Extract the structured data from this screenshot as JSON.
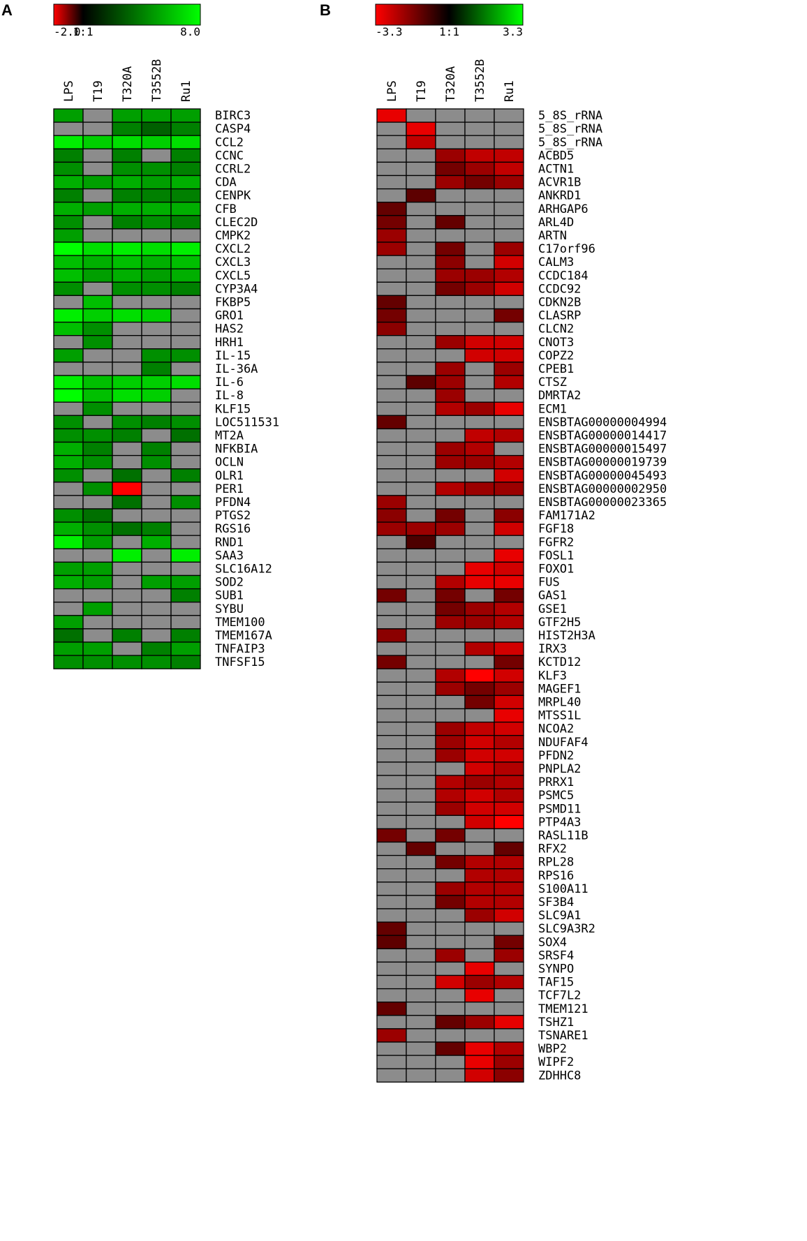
{
  "chart_data": [
    {
      "type": "heatmap",
      "panel": "A",
      "color_scale": {
        "min_label": "-2.0",
        "mid_label": "1:1",
        "max_label": "8.0",
        "min": -2.0,
        "max": 8.0,
        "neg_color": "#ff0000",
        "mid_color": "#000000",
        "pos_color": "#00ff00",
        "na_color": "#8c8c8c"
      },
      "columns": [
        "LPS",
        "T19",
        "T320A",
        "T3552B",
        "Ru1"
      ],
      "rows": [
        "BIRC3",
        "CASP4",
        "CCL2",
        "CCNC",
        "CCRL2",
        "CDA",
        "CENPK",
        "CFB",
        "CLEC2D",
        "CMPK2",
        "CXCL2",
        "CXCL3",
        "CXCL5",
        "CYP3A4",
        "FKBP5",
        "GRO1",
        "HAS2",
        "HRH1",
        "IL-15",
        "IL-36A",
        "IL-6",
        "IL-8",
        "KLF15",
        "LOC511531",
        "MT2A",
        "NFKBIA",
        "OCLN",
        "OLR1",
        "PER1",
        "PFDN4",
        "PTGS2",
        "RGS16",
        "RND1",
        "SAA3",
        "SLC16A12",
        "SOD2",
        "SUB1",
        "SYBU",
        "TMEM100",
        "TMEM167A",
        "TNFAIP3",
        "TNFSF15"
      ],
      "values": [
        [
          5,
          null,
          5,
          5,
          5
        ],
        [
          null,
          null,
          4,
          3,
          4
        ],
        [
          7.5,
          6.5,
          7,
          6.5,
          7
        ],
        [
          4,
          null,
          4,
          null,
          4
        ],
        [
          4.5,
          null,
          4.5,
          4.5,
          4
        ],
        [
          5.5,
          5,
          5.5,
          5,
          5.5
        ],
        [
          4,
          null,
          4,
          4,
          4
        ],
        [
          5.5,
          5,
          5.5,
          5.5,
          5.5
        ],
        [
          4.5,
          null,
          4,
          4.5,
          4
        ],
        [
          5,
          null,
          null,
          null,
          null
        ],
        [
          8,
          7,
          7.5,
          7,
          7.5
        ],
        [
          6,
          5.5,
          6,
          5.5,
          6
        ],
        [
          6,
          5,
          5.5,
          5,
          5.5
        ],
        [
          4.5,
          null,
          4.5,
          4.5,
          4
        ],
        [
          null,
          6,
          null,
          null,
          null
        ],
        [
          7.5,
          6.5,
          7,
          6.5,
          null
        ],
        [
          6,
          4.5,
          null,
          null,
          null
        ],
        [
          null,
          4.5,
          null,
          null,
          null
        ],
        [
          5,
          null,
          null,
          4.5,
          4.5
        ],
        [
          null,
          null,
          null,
          4,
          null
        ],
        [
          7.5,
          6,
          6.5,
          6.5,
          7
        ],
        [
          8,
          6,
          7,
          6.5,
          null
        ],
        [
          null,
          4.5,
          null,
          null,
          null
        ],
        [
          4.5,
          null,
          4.5,
          4,
          4.5
        ],
        [
          4.5,
          4.5,
          4,
          null,
          3.5
        ],
        [
          5.5,
          4,
          null,
          4,
          null
        ],
        [
          5.5,
          4.5,
          null,
          4.5,
          null
        ],
        [
          4.5,
          null,
          3.5,
          null,
          4
        ],
        [
          null,
          4.5,
          -2,
          null,
          null
        ],
        [
          null,
          null,
          3.5,
          null,
          4.5
        ],
        [
          4.5,
          3.5,
          null,
          null,
          null
        ],
        [
          5.5,
          4.5,
          3.5,
          4,
          null
        ],
        [
          7.5,
          5,
          null,
          5.5,
          null
        ],
        [
          null,
          null,
          7.5,
          null,
          7.5
        ],
        [
          5,
          5,
          null,
          null,
          null
        ],
        [
          5.5,
          5,
          null,
          5,
          5
        ],
        [
          null,
          null,
          null,
          null,
          4
        ],
        [
          null,
          5,
          null,
          null,
          null
        ],
        [
          5,
          null,
          null,
          null,
          null
        ],
        [
          3.5,
          null,
          4,
          null,
          4
        ],
        [
          5,
          5,
          null,
          4,
          5
        ],
        [
          4.5,
          4.5,
          4.5,
          4.5,
          4
        ]
      ]
    },
    {
      "type": "heatmap",
      "panel": "B",
      "color_scale": {
        "min_label": "-3.3",
        "mid_label": "1:1",
        "max_label": "3.3",
        "min": -3.3,
        "max": 3.3,
        "neg_color": "#ff0000",
        "mid_color": "#000000",
        "pos_color": "#00ff00",
        "na_color": "#8c8c8c"
      },
      "columns": [
        "LPS",
        "T19",
        "T320A",
        "T3552B",
        "Ru1"
      ],
      "rows": [
        "5_8S_rRNA",
        "5_8S_rRNA",
        "5_8S_rRNA",
        "ACBD5",
        "ACTN1",
        "ACVR1B",
        "ANKRD1",
        "ARHGAP6",
        "ARL4D",
        "ARTN",
        "C17orf96",
        "CALM3",
        "CCDC184",
        "CCDC92",
        "CDKN2B",
        "CLASRP",
        "CLCN2",
        "CNOT3",
        "COPZ2",
        "CPEB1",
        "CTSZ",
        "DMRTA2",
        "ECM1",
        "ENSBTAG00000004994",
        "ENSBTAG00000014417",
        "ENSBTAG00000015497",
        "ENSBTAG00000019739",
        "ENSBTAG00000045493",
        "ENSBTAG00000002950",
        "ENSBTAG00000023365",
        "FAM171A2",
        "FGF18",
        "FGFR2",
        "FOSL1",
        "FOXO1",
        "FUS",
        "GAS1",
        "GSE1",
        "GTF2H5",
        "HIST2H3A",
        "IRX3",
        "KCTD12",
        "KLF3",
        "MAGEF1",
        "MRPL40",
        "MTSS1L",
        "NCOA2",
        "NDUFAF4",
        "PFDN2",
        "PNPLA2",
        "PRRX1",
        "PSMC5",
        "PSMD11",
        "PTP4A3",
        "RASL11B",
        "RFX2",
        "RPL28",
        "RPS16",
        "S100A11",
        "SF3B4",
        "SLC9A1",
        "SLC9A3R2",
        "SOX4",
        "SRSF4",
        "SYNPO",
        "TAF15",
        "TCF7L2",
        "TMEM121",
        "TSHZ1",
        "TSNARE1",
        "WBP2",
        "WIPF2",
        "ZDHHC8"
      ],
      "values": [
        [
          -3.0,
          null,
          null,
          null,
          null
        ],
        [
          null,
          -3.0,
          null,
          null,
          null
        ],
        [
          null,
          -2.5,
          null,
          null,
          null
        ],
        [
          null,
          null,
          -2.0,
          -2.5,
          -2.5
        ],
        [
          null,
          null,
          -1.5,
          -2.0,
          -2.5
        ],
        [
          null,
          null,
          -2.0,
          -1.5,
          -2.0
        ],
        [
          null,
          -1.2,
          null,
          null,
          null
        ],
        [
          -1.3,
          null,
          null,
          null,
          null
        ],
        [
          -1.5,
          null,
          -1.3,
          null,
          null
        ],
        [
          -2.0,
          null,
          null,
          null,
          null
        ],
        [
          -2.0,
          null,
          -1.5,
          null,
          -2.0
        ],
        [
          null,
          null,
          -1.8,
          null,
          -2.7
        ],
        [
          null,
          null,
          -2.0,
          -2.0,
          -2.3
        ],
        [
          null,
          null,
          -1.5,
          -2.0,
          -2.7
        ],
        [
          -1.3,
          null,
          null,
          null,
          null
        ],
        [
          -1.5,
          null,
          null,
          null,
          -1.5
        ],
        [
          -1.8,
          null,
          null,
          null,
          null
        ],
        [
          null,
          null,
          -2.0,
          -2.7,
          -2.7
        ],
        [
          null,
          null,
          null,
          -2.7,
          -2.7
        ],
        [
          null,
          null,
          -2.0,
          null,
          -2.0
        ],
        [
          null,
          -1.2,
          -2.0,
          null,
          -2.3
        ],
        [
          null,
          null,
          -2.0,
          null,
          null
        ],
        [
          null,
          null,
          -2.3,
          -2.0,
          -3.0
        ],
        [
          -1.3,
          null,
          null,
          null,
          null
        ],
        [
          null,
          null,
          null,
          -2.5,
          -2.3
        ],
        [
          null,
          null,
          -2.0,
          -2.3,
          null
        ],
        [
          null,
          null,
          -2.0,
          -2.0,
          -2.3
        ],
        [
          null,
          null,
          null,
          null,
          -2.7
        ],
        [
          null,
          null,
          -2.3,
          -2.0,
          -2.0
        ],
        [
          -2.0,
          null,
          null,
          null,
          null
        ],
        [
          -1.8,
          null,
          -1.5,
          null,
          -1.8
        ],
        [
          -2.0,
          -2.0,
          -2.0,
          null,
          -2.7
        ],
        [
          null,
          -1.0,
          null,
          null,
          null
        ],
        [
          null,
          null,
          null,
          null,
          -3.0
        ],
        [
          null,
          null,
          null,
          -3.0,
          -2.7
        ],
        [
          null,
          null,
          -2.3,
          -3.0,
          -3.0
        ],
        [
          -1.5,
          null,
          -1.5,
          null,
          -1.5
        ],
        [
          null,
          null,
          -1.5,
          -2.0,
          -2.3
        ],
        [
          null,
          null,
          -2.0,
          -2.0,
          -2.3
        ],
        [
          -1.8,
          null,
          null,
          null,
          null
        ],
        [
          null,
          null,
          null,
          -2.3,
          -2.7
        ],
        [
          -1.5,
          null,
          null,
          null,
          -1.5
        ],
        [
          null,
          null,
          -2.3,
          -3.3,
          -2.7
        ],
        [
          null,
          null,
          -2.0,
          -1.5,
          -2.0
        ],
        [
          null,
          null,
          null,
          -1.5,
          -2.7
        ],
        [
          null,
          null,
          null,
          null,
          -3.0
        ],
        [
          null,
          null,
          -2.0,
          -2.5,
          -2.7
        ],
        [
          null,
          null,
          -2.0,
          -2.7,
          -2.3
        ],
        [
          null,
          null,
          -2.0,
          -2.7,
          -2.7
        ],
        [
          null,
          null,
          null,
          -2.7,
          -2.3
        ],
        [
          null,
          null,
          -2.3,
          -2.0,
          -2.3
        ],
        [
          null,
          null,
          -2.3,
          -2.7,
          -2.3
        ],
        [
          null,
          null,
          -2.0,
          -2.7,
          -2.7
        ],
        [
          null,
          null,
          null,
          -2.7,
          -3.3
        ],
        [
          -1.5,
          null,
          -1.5,
          null,
          null
        ],
        [
          null,
          -1.3,
          null,
          null,
          -1.3
        ],
        [
          null,
          null,
          -1.5,
          -2.3,
          -2.3
        ],
        [
          null,
          null,
          null,
          -2.3,
          -2.3
        ],
        [
          null,
          null,
          -2.0,
          -2.3,
          -2.3
        ],
        [
          null,
          null,
          -1.5,
          -2.3,
          -2.3
        ],
        [
          null,
          null,
          null,
          -2.0,
          -2.7
        ],
        [
          -1.3,
          null,
          null,
          null,
          null
        ],
        [
          -1.2,
          null,
          null,
          null,
          -1.5
        ],
        [
          null,
          null,
          -2.0,
          null,
          -2.0
        ],
        [
          null,
          null,
          null,
          -3.0,
          null
        ],
        [
          null,
          null,
          -2.7,
          -2.0,
          -2.3
        ],
        [
          null,
          null,
          null,
          -3.0,
          null
        ],
        [
          -1.3,
          null,
          null,
          null,
          null
        ],
        [
          null,
          null,
          -1.3,
          -2.0,
          -3.0
        ],
        [
          -2.0,
          null,
          null,
          null,
          null
        ],
        [
          null,
          null,
          -1.3,
          -3.0,
          -2.3
        ],
        [
          null,
          null,
          null,
          -3.0,
          -2.0
        ],
        [
          null,
          null,
          null,
          -2.7,
          -1.8
        ]
      ]
    }
  ]
}
